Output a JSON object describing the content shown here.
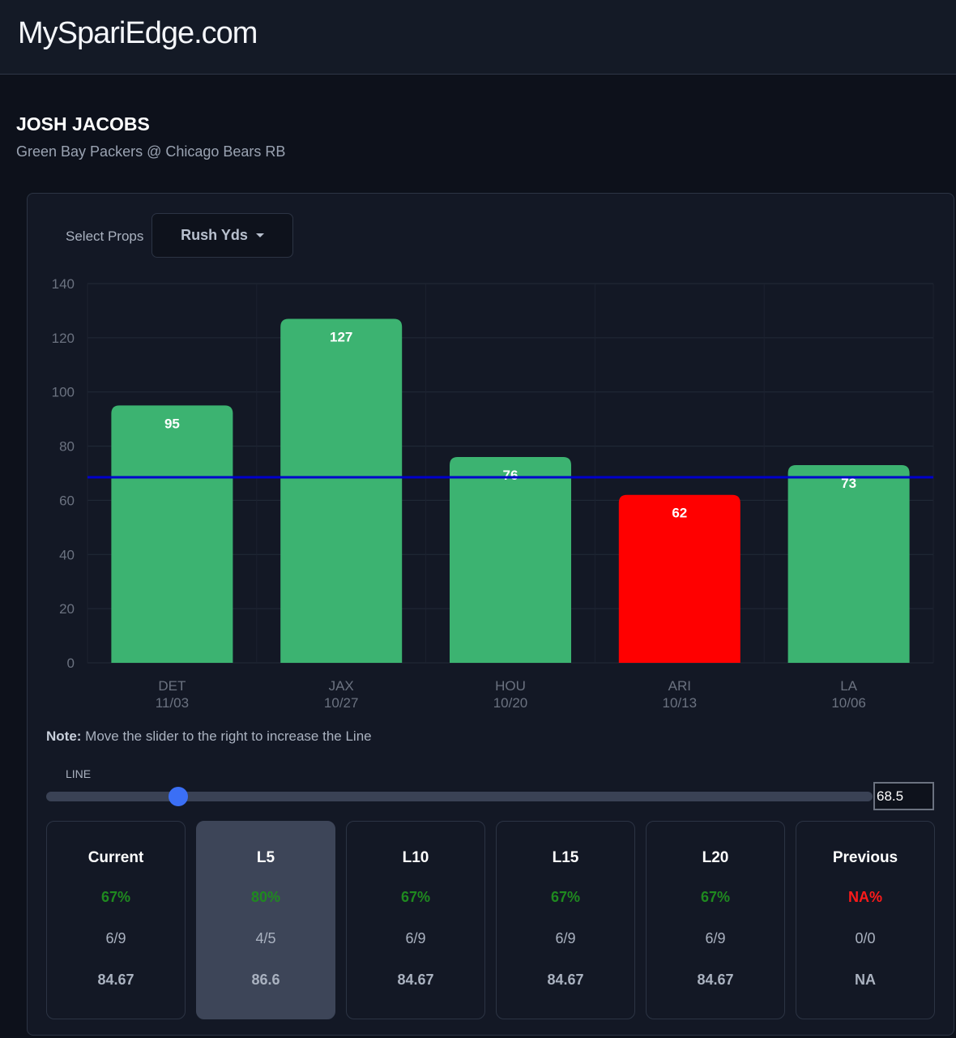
{
  "header": {
    "brand": "MySpariEdge.com"
  },
  "player": {
    "name": "JOSH JACOBS",
    "subtitle": "Green Bay Packers @ Chicago Bears RB"
  },
  "props": {
    "label": "Select Props",
    "selected": "Rush Yds"
  },
  "colors": {
    "over": "#3cb371",
    "under": "#ff0000",
    "line": "#0000cc",
    "accent": "#3b6ff5",
    "pct_green": "#1f8a1f",
    "pct_red": "#ff1a1a"
  },
  "chart_data": {
    "type": "bar",
    "categories": [
      "DET",
      "JAX",
      "HOU",
      "ARI",
      "LA"
    ],
    "dates": [
      "11/03",
      "10/27",
      "10/20",
      "10/13",
      "10/06"
    ],
    "values": [
      95,
      127,
      76,
      62,
      73
    ],
    "ylim": [
      0,
      140
    ],
    "yticks": [
      0,
      20,
      40,
      60,
      80,
      100,
      120,
      140
    ],
    "line": 68.5,
    "grid": true
  },
  "note": {
    "bold": "Note:",
    "text": " Move the slider to the right to increase the Line"
  },
  "slider": {
    "label": "LINE",
    "value": "68.5",
    "fraction": 0.16
  },
  "stats": [
    {
      "title": "Current",
      "pct": "67%",
      "frac": "6/9",
      "avg": "84.67",
      "color": "green"
    },
    {
      "title": "L5",
      "pct": "80%",
      "frac": "4/5",
      "avg": "86.6",
      "color": "green",
      "active": true
    },
    {
      "title": "L10",
      "pct": "67%",
      "frac": "6/9",
      "avg": "84.67",
      "color": "green"
    },
    {
      "title": "L15",
      "pct": "67%",
      "frac": "6/9",
      "avg": "84.67",
      "color": "green"
    },
    {
      "title": "L20",
      "pct": "67%",
      "frac": "6/9",
      "avg": "84.67",
      "color": "green"
    },
    {
      "title": "Previous",
      "pct": "NA%",
      "frac": "0/0",
      "avg": "NA",
      "color": "red"
    }
  ]
}
